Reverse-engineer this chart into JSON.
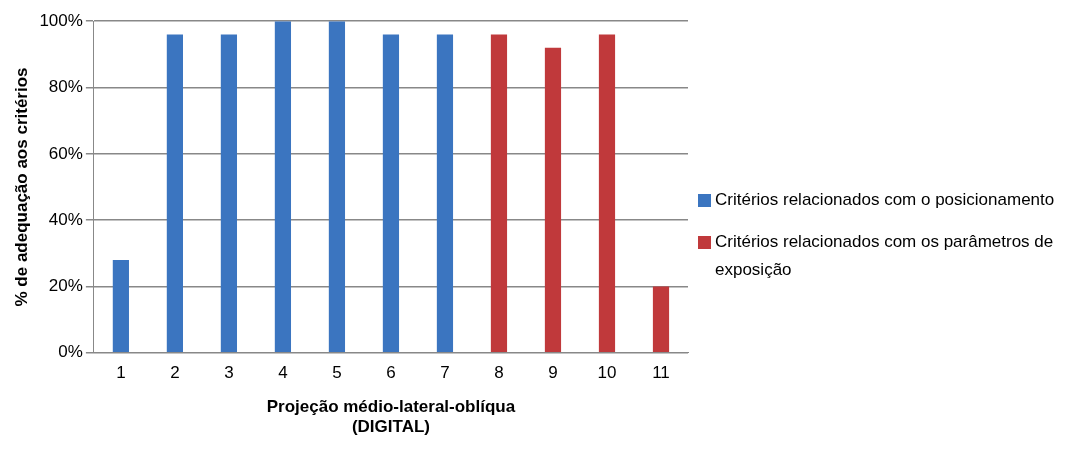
{
  "chart_data": {
    "type": "bar",
    "stacked": true,
    "xlabel": "Projeção médio-lateral-oblíqua\n(DIGITAL)",
    "ylabel": "% de adequação aos critérios",
    "categories": [
      "1",
      "2",
      "3",
      "4",
      "5",
      "6",
      "7",
      "8",
      "9",
      "10",
      "11"
    ],
    "series": [
      {
        "name": "Critérios relacionados com o posicionamento",
        "color": "#3b75c0",
        "values": [
          28,
          96,
          96,
          100,
          100,
          96,
          96,
          null,
          null,
          null,
          null
        ]
      },
      {
        "name": "Critérios relacionados com os parâmetros de exposição",
        "color": "#c0393b",
        "values": [
          null,
          null,
          null,
          null,
          null,
          null,
          null,
          96,
          92,
          96,
          20
        ]
      }
    ],
    "ylim": [
      0,
      100
    ],
    "yticks": [
      {
        "value": 0,
        "label": "0%"
      },
      {
        "value": 20,
        "label": "20%"
      },
      {
        "value": 40,
        "label": "40%"
      },
      {
        "value": 60,
        "label": "60%"
      },
      {
        "value": 80,
        "label": "80%"
      },
      {
        "value": 100,
        "label": "100%"
      }
    ],
    "grid": "y",
    "legend": "right"
  }
}
